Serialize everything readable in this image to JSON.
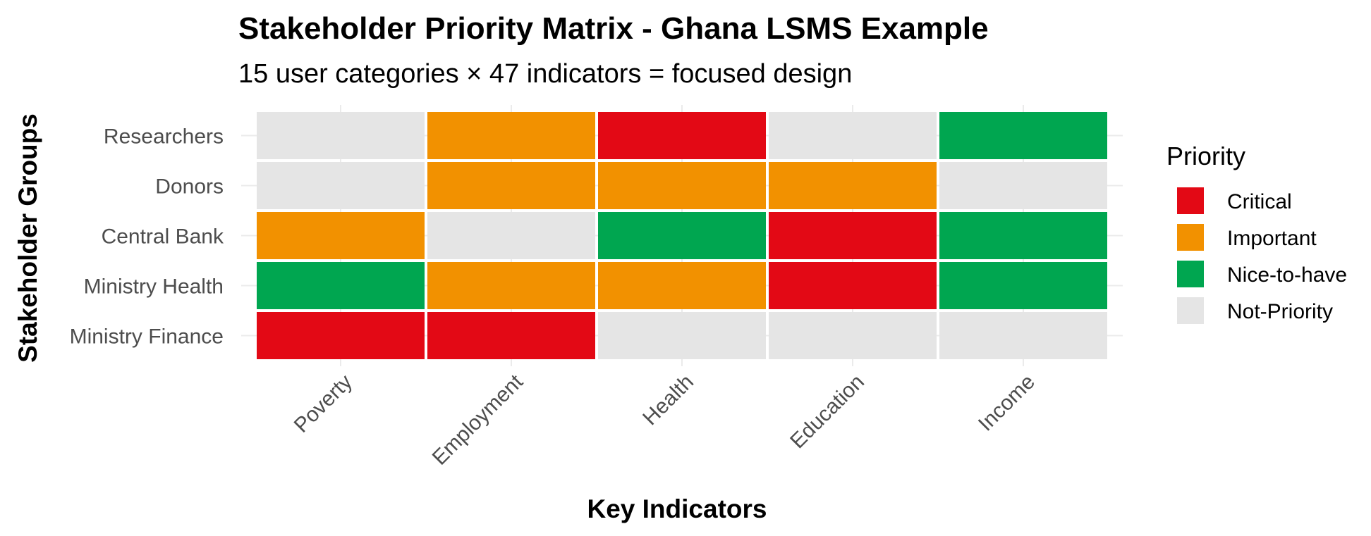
{
  "chart_data": {
    "type": "heatmap",
    "title": "Stakeholder Priority Matrix - Ghana LSMS Example",
    "subtitle": "15 user categories × 47 indicators = focused design",
    "xlabel": "Key Indicators",
    "ylabel": "Stakeholder Groups",
    "x_categories": [
      "Poverty",
      "Employment",
      "Health",
      "Education",
      "Income"
    ],
    "y_categories": [
      "Researchers",
      "Donors",
      "Central Bank",
      "Ministry Health",
      "Ministry Finance"
    ],
    "cells": [
      [
        "Not-Priority",
        "Important",
        "Critical",
        "Not-Priority",
        "Nice-to-have"
      ],
      [
        "Not-Priority",
        "Important",
        "Important",
        "Important",
        "Not-Priority"
      ],
      [
        "Important",
        "Not-Priority",
        "Nice-to-have",
        "Critical",
        "Nice-to-have"
      ],
      [
        "Nice-to-have",
        "Important",
        "Important",
        "Critical",
        "Nice-to-have"
      ],
      [
        "Critical",
        "Critical",
        "Not-Priority",
        "Not-Priority",
        "Not-Priority"
      ]
    ],
    "legend": {
      "title": "Priority",
      "position": "right",
      "items": [
        {
          "label": "Critical",
          "color": "#e30915"
        },
        {
          "label": "Important",
          "color": "#f29100"
        },
        {
          "label": "Nice-to-have",
          "color": "#00a650"
        },
        {
          "label": "Not-Priority",
          "color": "#e5e5e5"
        }
      ]
    },
    "grid": true
  }
}
